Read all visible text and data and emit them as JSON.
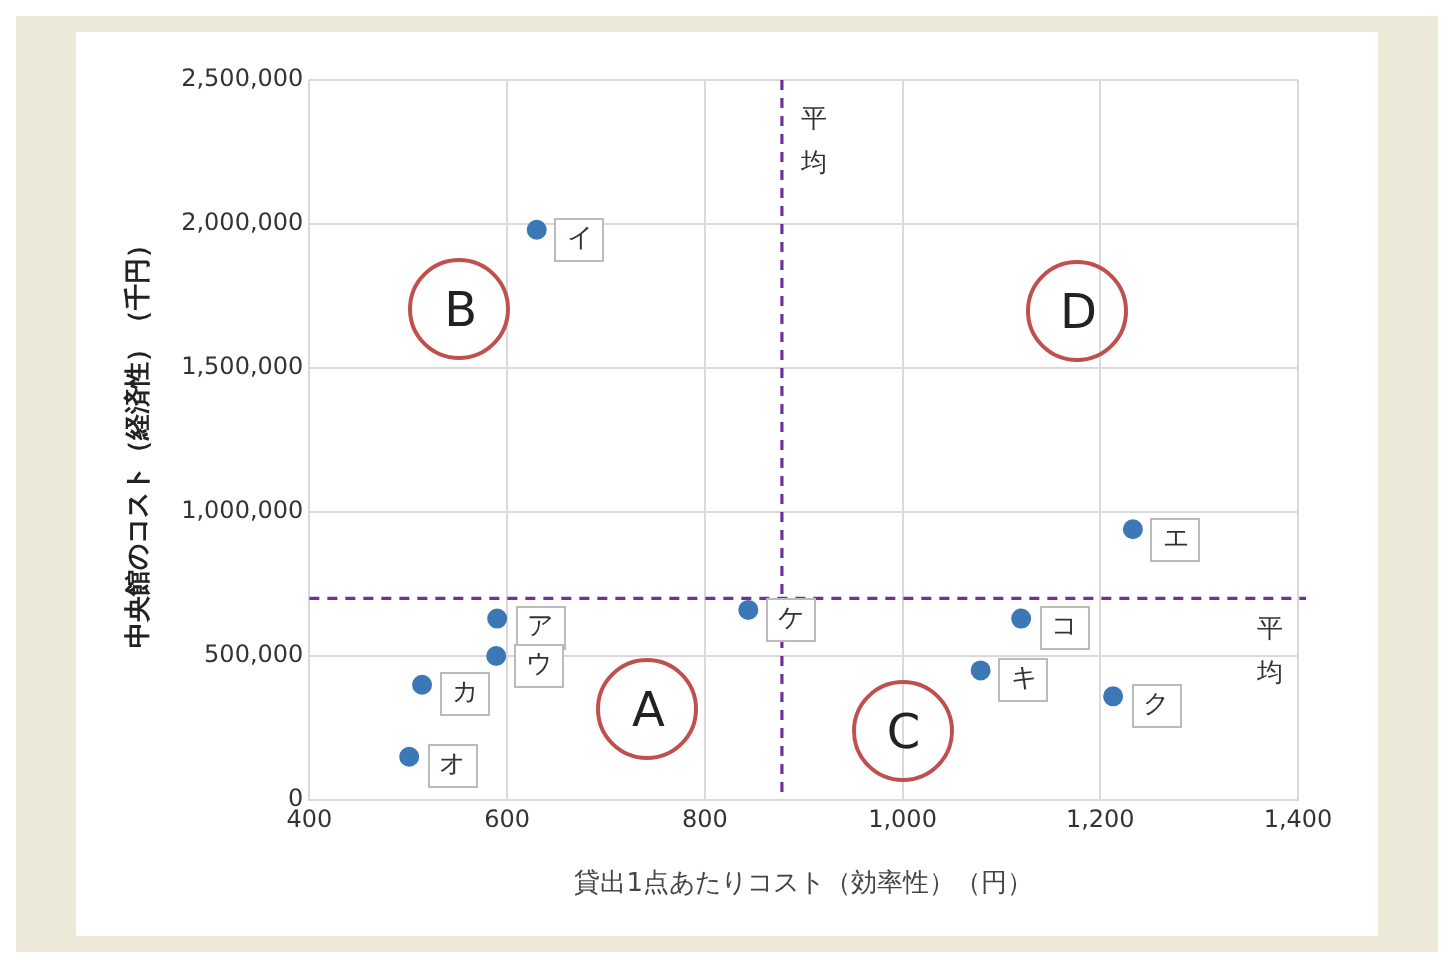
{
  "chart_data": {
    "type": "scatter",
    "xlabel": "貸出1点あたりコスト（効率性）（円）",
    "ylabel": "中央館のコスト（経済性）（千円）",
    "x": [
      590,
      630,
      589,
      1233,
      501,
      514,
      1079,
      1213,
      844,
      1120
    ],
    "series": [
      {
        "color": "#3b78b5",
        "values": [
          630000,
          1980000,
          500000,
          940000,
          150000,
          400000,
          450000,
          360000,
          660000,
          630000
        ]
      }
    ],
    "xlim": [
      400,
      1400
    ],
    "xticks": [
      {
        "value": 400,
        "label": "400"
      },
      {
        "value": 600,
        "label": "600"
      },
      {
        "value": 800,
        "label": "800"
      },
      {
        "value": 1000,
        "label": "1,000"
      },
      {
        "value": 1200,
        "label": "1,200"
      },
      {
        "value": 1400,
        "label": "1,400"
      }
    ],
    "ylim": [
      0,
      2500000
    ],
    "yticks": [
      {
        "value": 0,
        "label": "0"
      },
      {
        "value": 500000,
        "label": "500,000"
      },
      {
        "value": 1000000,
        "label": "1,000,000"
      },
      {
        "value": 1500000,
        "label": "1,500,000"
      },
      {
        "value": 2000000,
        "label": "2,000,000"
      },
      {
        "value": 2500000,
        "label": "2,500,000"
      }
    ],
    "grid": true,
    "marker": "circle",
    "ref_lines": [
      {
        "axis": "x",
        "value": 878,
        "label": "平均",
        "color": "#7030a0",
        "line_style": "dashed"
      },
      {
        "axis": "y",
        "value": 700000,
        "label": "平均",
        "color": "#7030a0",
        "line_style": "dashed"
      }
    ],
    "annotations": [
      {
        "text": "ア",
        "x": 590,
        "y": 630000
      },
      {
        "text": "イ",
        "x": 630,
        "y": 1980000
      },
      {
        "text": "ウ",
        "x": 589,
        "y": 500000
      },
      {
        "text": "エ",
        "x": 1233,
        "y": 940000
      },
      {
        "text": "オ",
        "x": 501,
        "y": 150000
      },
      {
        "text": "カ",
        "x": 514,
        "y": 400000
      },
      {
        "text": "キ",
        "x": 1079,
        "y": 450000
      },
      {
        "text": "ク",
        "x": 1213,
        "y": 360000
      },
      {
        "text": "ケ",
        "x": 844,
        "y": 660000
      },
      {
        "text": "コ",
        "x": 1120,
        "y": 630000
      },
      "A",
      "B",
      "C",
      "D"
    ]
  }
}
